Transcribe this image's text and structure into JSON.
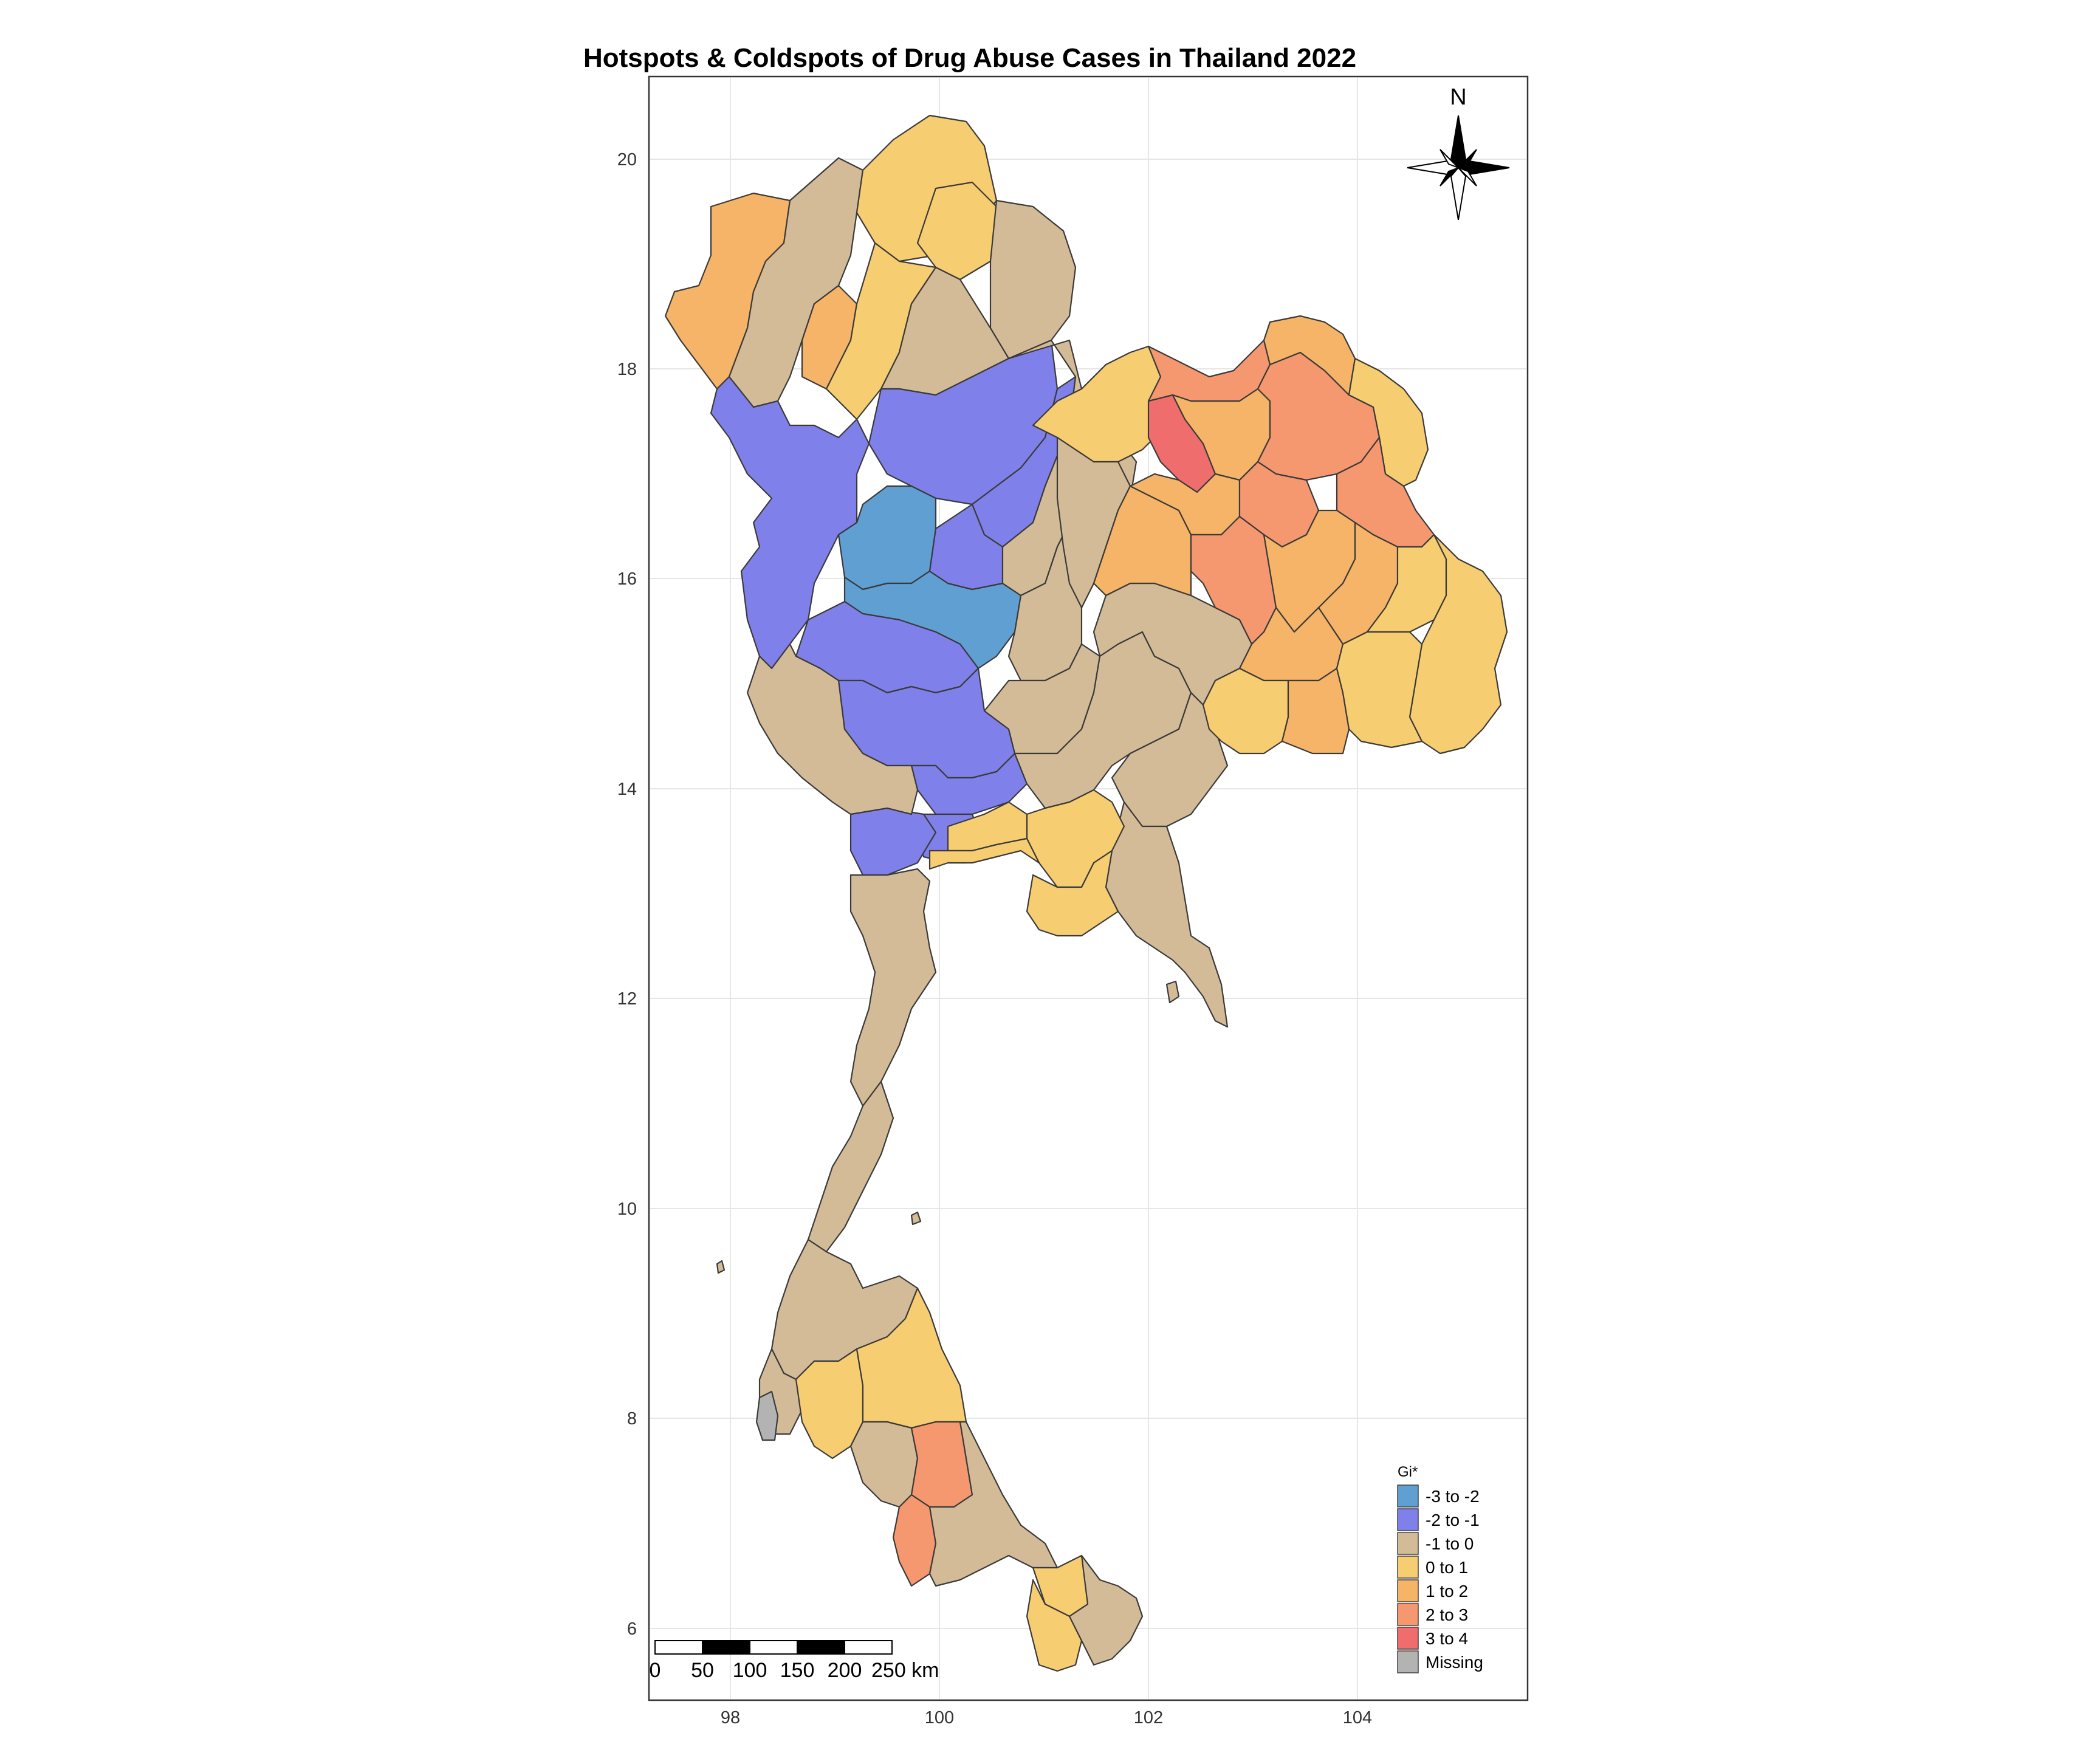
{
  "title": "Hotspots & Coldspots of Drug Abuse Cases in Thailand 2022",
  "axes": {
    "x_ticks": [
      "98",
      "100",
      "102",
      "104"
    ],
    "y_ticks": [
      "20",
      "18",
      "16",
      "14",
      "12",
      "10",
      "8",
      "6"
    ]
  },
  "north_arrow": {
    "label": "N",
    "icon": "compass-rose-icon"
  },
  "scale_bar": {
    "labels": [
      "0",
      "50",
      "100",
      "150",
      "200",
      "250 km"
    ]
  },
  "legend": {
    "title": "Gi*",
    "entries": [
      {
        "label": "-3 to -2",
        "color": "#5f9fd2"
      },
      {
        "label": "-2 to -1",
        "color": "#8080ea"
      },
      {
        "label": "-1 to 0",
        "color": "#d4bb97"
      },
      {
        "label": "0 to 1",
        "color": "#f7cd72"
      },
      {
        "label": "1 to 2",
        "color": "#f5b467"
      },
      {
        "label": "2 to 3",
        "color": "#f59870"
      },
      {
        "label": "3 to 4",
        "color": "#ef6d6d"
      },
      {
        "label": "Missing",
        "color": "#b3b3b3"
      }
    ]
  }
}
